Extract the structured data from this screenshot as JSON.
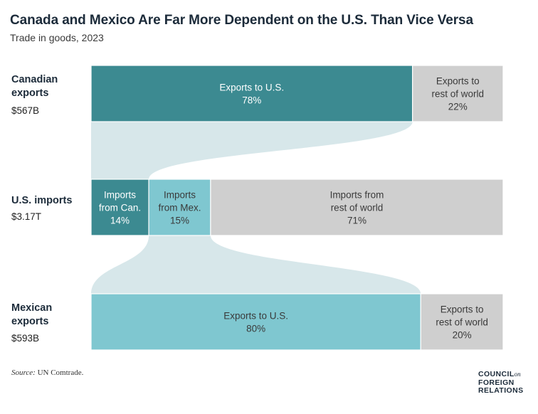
{
  "header": {
    "title": "Canada and Mexico Are Far More Dependent on the U.S. Than Vice Versa",
    "subtitle": "Trade in goods, 2023"
  },
  "rows": {
    "canada": {
      "label_line1": "Canadian",
      "label_line2": "exports",
      "value": "$567B"
    },
    "us": {
      "label": "U.S. imports",
      "value": "$3.17T"
    },
    "mexico": {
      "label_line1": "Mexican",
      "label_line2": "exports",
      "value": "$593B"
    }
  },
  "footer": {
    "source_label": "Source:",
    "source_text": "UN Comtrade.",
    "logo_line1": "COUNCIL",
    "logo_on": "on",
    "logo_line2": "FOREIGN",
    "logo_line3": "RELATIONS"
  },
  "colors": {
    "dark_teal": "#3c8a91",
    "light_teal": "#7fc7d0",
    "gray": "#cfcfcf",
    "flow": "#d7e7ea",
    "text_on_dark": "#ffffff",
    "text_on_light": "#3a3a3a"
  },
  "chart_data": {
    "type": "bar",
    "layout": "stacked-horizontal-100-percent",
    "rows": [
      {
        "name": "Canadian exports",
        "total": "$567B",
        "segments": [
          {
            "label": [
              "Exports to U.S."
            ],
            "value": 78,
            "value_label": "78%",
            "color": "#3c8a91"
          },
          {
            "label": [
              "Exports to",
              "rest of world"
            ],
            "value": 22,
            "value_label": "22%",
            "color": "#cfcfcf"
          }
        ]
      },
      {
        "name": "U.S. imports",
        "total": "$3.17T",
        "segments": [
          {
            "label": [
              "Imports",
              "from Can."
            ],
            "value": 14,
            "value_label": "14%",
            "color": "#3c8a91"
          },
          {
            "label": [
              "Imports",
              "from Mex."
            ],
            "value": 15,
            "value_label": "15%",
            "color": "#7fc7d0"
          },
          {
            "label": [
              "Imports from",
              "rest of world"
            ],
            "value": 71,
            "value_label": "71%",
            "color": "#cfcfcf"
          }
        ]
      },
      {
        "name": "Mexican exports",
        "total": "$593B",
        "segments": [
          {
            "label": [
              "Exports to U.S."
            ],
            "value": 80,
            "value_label": "80%",
            "color": "#7fc7d0"
          },
          {
            "label": [
              "Exports to",
              "rest of world"
            ],
            "value": 20,
            "value_label": "20%",
            "color": "#cfcfcf"
          }
        ]
      }
    ],
    "flows": [
      {
        "from": "Canadian exports: Exports to U.S.",
        "to": "U.S. imports: Imports from Can."
      },
      {
        "from": "U.S. imports: Imports from Mex.",
        "to": "Mexican exports: Exports to U.S."
      }
    ]
  }
}
